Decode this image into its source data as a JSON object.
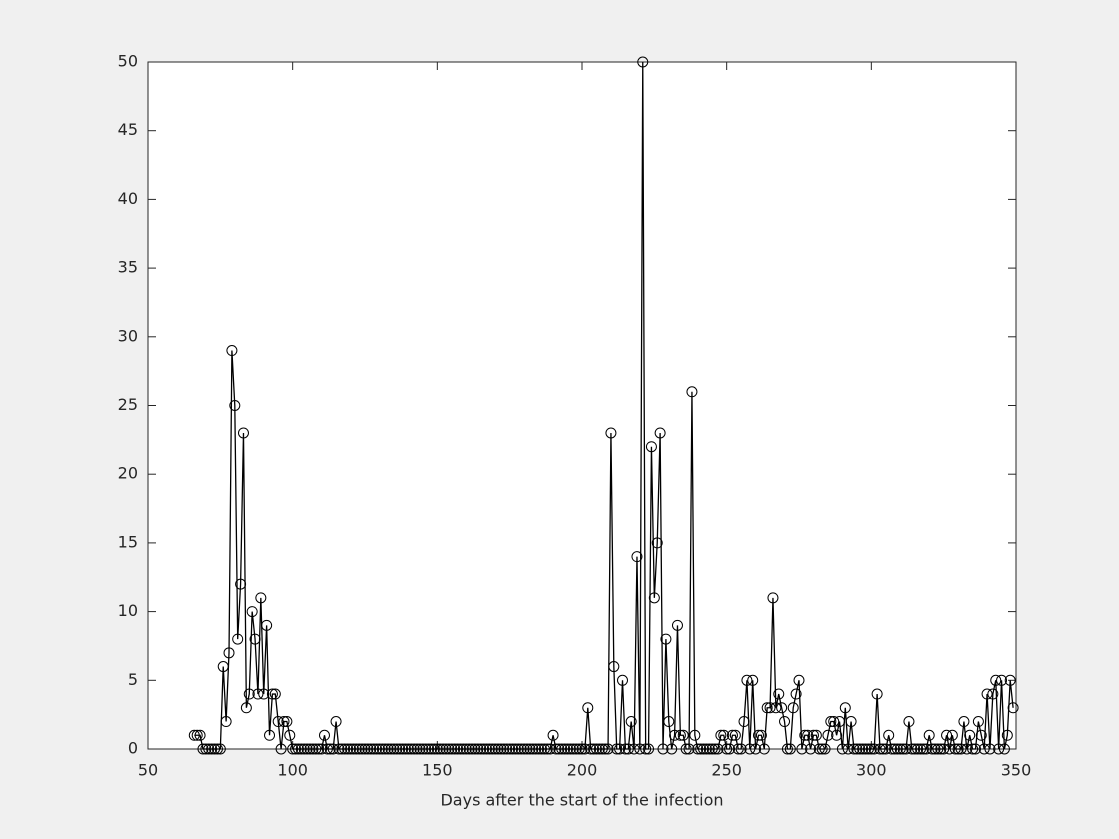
{
  "chart_data": {
    "type": "line",
    "xlabel": "Days after the start of the infection",
    "xlim": [
      50,
      350
    ],
    "xticks": [
      50,
      100,
      150,
      200,
      250,
      300,
      350
    ],
    "ylim": [
      0,
      50
    ],
    "yticks": [
      0,
      5,
      10,
      15,
      20,
      25,
      30,
      35,
      40,
      45,
      50
    ],
    "grid": false,
    "marker": "circle",
    "series": [
      {
        "color": "#000000",
        "x": [
          66,
          67,
          68,
          69,
          70,
          71,
          72,
          73,
          74,
          75,
          76,
          77,
          78,
          79,
          80,
          81,
          82,
          83,
          84,
          85,
          86,
          87,
          88,
          89,
          90,
          91,
          92,
          93,
          94,
          95,
          96,
          97,
          98,
          99,
          100,
          101,
          102,
          103,
          104,
          105,
          106,
          107,
          108,
          109,
          110,
          111,
          112,
          113,
          114,
          115,
          116,
          117,
          118,
          119,
          120,
          121,
          122,
          123,
          124,
          125,
          126,
          127,
          128,
          129,
          130,
          131,
          132,
          133,
          134,
          135,
          136,
          137,
          138,
          139,
          140,
          141,
          142,
          143,
          144,
          145,
          146,
          147,
          148,
          149,
          150,
          151,
          152,
          153,
          154,
          155,
          156,
          157,
          158,
          159,
          160,
          161,
          162,
          163,
          164,
          165,
          166,
          167,
          168,
          169,
          170,
          171,
          172,
          173,
          174,
          175,
          176,
          177,
          178,
          179,
          180,
          181,
          182,
          183,
          184,
          185,
          186,
          187,
          188,
          189,
          190,
          191,
          192,
          193,
          194,
          195,
          196,
          197,
          198,
          199,
          200,
          201,
          202,
          203,
          204,
          205,
          206,
          207,
          208,
          209,
          210,
          211,
          212,
          213,
          214,
          215,
          216,
          217,
          218,
          219,
          220,
          221,
          222,
          223,
          224,
          225,
          226,
          227,
          228,
          229,
          230,
          231,
          232,
          233,
          234,
          235,
          236,
          237,
          238,
          239,
          240,
          241,
          242,
          243,
          244,
          245,
          246,
          247,
          248,
          249,
          250,
          251,
          252,
          253,
          254,
          255,
          256,
          257,
          258,
          259,
          260,
          261,
          262,
          263,
          264,
          265,
          266,
          267,
          268,
          269,
          270,
          271,
          272,
          273,
          274,
          275,
          276,
          277,
          278,
          279,
          280,
          281,
          282,
          283,
          284,
          285,
          286,
          287,
          288,
          289,
          290,
          291,
          292,
          293,
          294,
          295,
          296,
          297,
          298,
          299,
          300,
          301,
          302,
          303,
          304,
          305,
          306,
          307,
          308,
          309,
          310,
          311,
          312,
          313,
          314,
          315,
          316,
          317,
          318,
          319,
          320,
          321,
          322,
          323,
          324,
          325,
          326,
          327,
          328,
          329,
          330,
          331,
          332,
          333,
          334,
          335,
          336,
          337,
          338,
          339,
          340,
          341,
          342,
          343,
          344,
          345,
          346,
          347,
          348,
          349
        ],
        "values": [
          1,
          1,
          1,
          0,
          0,
          0,
          0,
          0,
          0,
          0,
          6,
          2,
          7,
          29,
          25,
          8,
          12,
          23,
          3,
          4,
          10,
          8,
          4,
          11,
          4,
          9,
          1,
          4,
          4,
          2,
          0,
          2,
          2,
          1,
          0,
          0,
          0,
          0,
          0,
          0,
          0,
          0,
          0,
          0,
          0,
          1,
          0,
          0,
          0,
          2,
          0,
          0,
          0,
          0,
          0,
          0,
          0,
          0,
          0,
          0,
          0,
          0,
          0,
          0,
          0,
          0,
          0,
          0,
          0,
          0,
          0,
          0,
          0,
          0,
          0,
          0,
          0,
          0,
          0,
          0,
          0,
          0,
          0,
          0,
          0,
          0,
          0,
          0,
          0,
          0,
          0,
          0,
          0,
          0,
          0,
          0,
          0,
          0,
          0,
          0,
          0,
          0,
          0,
          0,
          0,
          0,
          0,
          0,
          0,
          0,
          0,
          0,
          0,
          0,
          0,
          0,
          0,
          0,
          0,
          0,
          0,
          0,
          0,
          0,
          1,
          0,
          0,
          0,
          0,
          0,
          0,
          0,
          0,
          0,
          0,
          0,
          3,
          0,
          0,
          0,
          0,
          0,
          0,
          0,
          23,
          6,
          0,
          0,
          5,
          0,
          0,
          2,
          0,
          14,
          0,
          50,
          0,
          0,
          22,
          11,
          15,
          23,
          0,
          8,
          2,
          0,
          1,
          9,
          1,
          1,
          0,
          0,
          26,
          1,
          0,
          0,
          0,
          0,
          0,
          0,
          0,
          0,
          1,
          1,
          0,
          0,
          1,
          1,
          0,
          0,
          2,
          5,
          0,
          5,
          0,
          1,
          1,
          0,
          3,
          3,
          11,
          3,
          4,
          3,
          2,
          0,
          0,
          3,
          4,
          5,
          0,
          1,
          1,
          0,
          1,
          1,
          0,
          0,
          0,
          1,
          2,
          2,
          1,
          2,
          0,
          3,
          0,
          2,
          0,
          0,
          0,
          0,
          0,
          0,
          0,
          0,
          4,
          0,
          0,
          0,
          1,
          0,
          0,
          0,
          0,
          0,
          0,
          2,
          0,
          0,
          0,
          0,
          0,
          0,
          1,
          0,
          0,
          0,
          0,
          0,
          1,
          0,
          1,
          0,
          0,
          0,
          2,
          0,
          1,
          0,
          0,
          2,
          1,
          0,
          4,
          0,
          4,
          5,
          0,
          5,
          0,
          1,
          5,
          3
        ]
      }
    ]
  }
}
